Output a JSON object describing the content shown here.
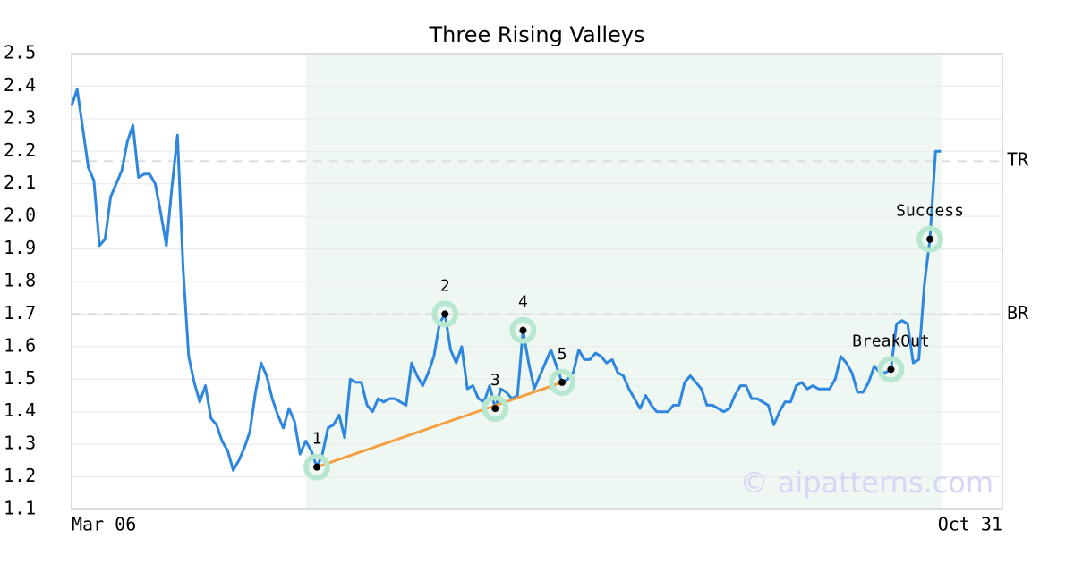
{
  "chart_data": {
    "type": "line",
    "title": "Three Rising Valleys",
    "categories": [
      "Mar 06",
      null,
      null,
      null,
      null,
      null,
      null,
      null,
      null,
      null,
      null,
      null,
      null,
      null,
      null,
      null,
      null,
      null,
      null,
      null,
      null,
      null,
      null,
      null,
      null,
      null,
      null,
      null,
      null,
      null,
      null,
      null,
      null,
      null,
      null,
      null,
      null,
      null,
      null,
      null,
      null,
      null,
      null,
      null,
      null,
      null,
      null,
      null,
      null,
      null,
      null,
      null,
      null,
      null,
      null,
      null,
      null,
      null,
      null,
      null,
      null,
      null,
      null,
      null,
      null,
      null,
      null,
      null,
      null,
      null,
      null,
      null,
      null,
      null,
      null,
      null,
      null,
      null,
      null,
      null,
      null,
      null,
      null,
      null,
      null,
      null,
      null,
      null,
      null,
      null,
      null,
      null,
      null,
      null,
      null,
      null,
      null,
      null,
      null,
      null,
      null,
      null,
      null,
      null,
      null,
      null,
      null,
      null,
      null,
      null,
      null,
      null,
      null,
      null,
      null,
      null,
      null,
      null,
      null,
      null,
      null,
      null,
      null,
      null,
      null,
      null,
      null,
      null,
      null,
      null,
      null,
      null,
      null,
      null,
      null,
      null,
      null,
      null,
      null,
      null,
      null,
      null,
      null,
      null,
      null,
      null,
      null,
      null,
      null,
      null,
      null,
      null,
      null,
      null,
      null,
      null,
      null,
      null,
      null,
      null,
      null,
      null,
      null,
      null,
      null,
      null,
      null,
      "Oct 31"
    ],
    "series": [
      {
        "color": "#2e86de",
        "values": [
          2.34,
          2.39,
          2.27,
          2.15,
          2.11,
          1.91,
          1.93,
          2.06,
          2.1,
          2.14,
          2.23,
          2.28,
          2.12,
          2.13,
          2.13,
          2.1,
          2.01,
          1.91,
          2.09,
          2.25,
          1.84,
          1.57,
          1.49,
          1.43,
          1.48,
          1.38,
          1.36,
          1.31,
          1.28,
          1.22,
          1.25,
          1.29,
          1.34,
          1.46,
          1.55,
          1.51,
          1.44,
          1.39,
          1.35,
          1.41,
          1.37,
          1.27,
          1.31,
          1.28,
          1.23,
          1.27,
          1.35,
          1.36,
          1.39,
          1.32,
          1.5,
          1.49,
          1.49,
          1.42,
          1.4,
          1.44,
          1.43,
          1.44,
          1.44,
          1.43,
          1.42,
          1.55,
          1.51,
          1.48,
          1.52,
          1.57,
          1.67,
          1.7,
          1.59,
          1.55,
          1.6,
          1.47,
          1.48,
          1.44,
          1.43,
          1.48,
          1.41,
          1.47,
          1.46,
          1.44,
          1.45,
          1.65,
          1.55,
          1.47,
          1.51,
          1.55,
          1.59,
          1.54,
          1.49,
          1.5,
          1.52,
          1.59,
          1.56,
          1.56,
          1.58,
          1.57,
          1.55,
          1.56,
          1.52,
          1.51,
          1.47,
          1.44,
          1.41,
          1.45,
          1.42,
          1.4,
          1.4,
          1.4,
          1.42,
          1.42,
          1.49,
          1.51,
          1.49,
          1.47,
          1.42,
          1.42,
          1.41,
          1.4,
          1.41,
          1.45,
          1.48,
          1.48,
          1.44,
          1.44,
          1.43,
          1.42,
          1.36,
          1.4,
          1.43,
          1.43,
          1.48,
          1.49,
          1.47,
          1.48,
          1.47,
          1.47,
          1.47,
          1.5,
          1.57,
          1.55,
          1.52,
          1.46,
          1.46,
          1.49,
          1.54,
          1.52,
          1.52,
          1.53,
          1.67,
          1.68,
          1.67,
          1.55,
          1.56,
          1.79,
          1.93,
          2.2,
          2.2,
          null,
          null,
          null,
          null,
          null,
          null,
          null,
          null,
          null,
          null,
          null
        ]
      }
    ],
    "ylim": [
      1.1,
      2.5
    ],
    "yticks": [
      1.1,
      1.2,
      1.3,
      1.4,
      1.5,
      1.6,
      1.7,
      1.8,
      1.9,
      {
        "value": 2,
        "label": "2.0"
      },
      2.1,
      2.2,
      2.3,
      2.4,
      2.5
    ],
    "grid": true,
    "highlight": {
      "from": 42,
      "to": 156,
      "color": "#eef7f2"
    },
    "levels": [
      {
        "label": "TR",
        "value": 2.17
      },
      {
        "label": "BR",
        "value": 1.7
      }
    ],
    "markers": [
      {
        "label": "1",
        "at": 44
      },
      {
        "label": "2",
        "at": 67
      },
      {
        "label": "3",
        "at": 76
      },
      {
        "label": "4",
        "at": 81
      },
      {
        "label": "5",
        "at": 88
      },
      {
        "label": "BreakOut",
        "at": 147
      },
      {
        "label": "Success",
        "at": 154
      }
    ],
    "trendline": {
      "from": 44,
      "to": 88,
      "color": "#f4a040"
    },
    "watermark": "© aipatterns.com"
  }
}
